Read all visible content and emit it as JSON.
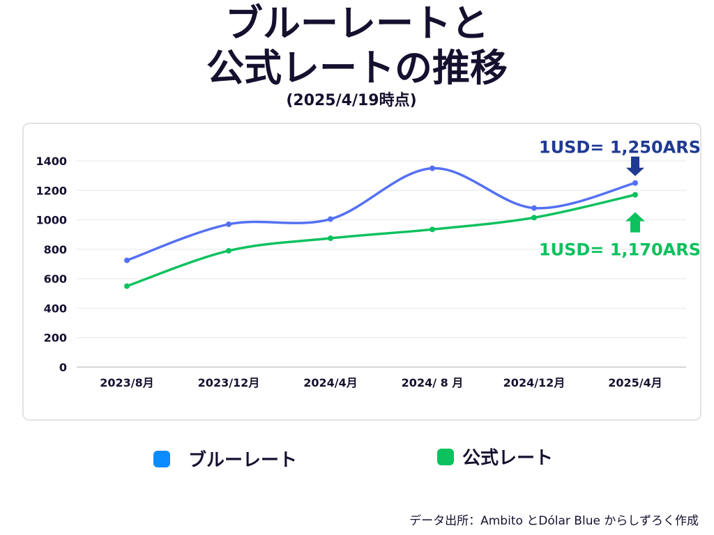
{
  "title": {
    "line1": "ブルーレートと",
    "line2": "公式レートの推移",
    "subtitle": "(2025/4/19時点)"
  },
  "chart_data": {
    "type": "line",
    "categories": [
      "2023/8月",
      "2023/12月",
      "2024/4月",
      "2024/ 8 月",
      "2024/12月",
      "2025/4月"
    ],
    "series": [
      {
        "name": "ブルーレート",
        "values": [
          725,
          970,
          1005,
          1350,
          1080,
          1250
        ],
        "color": "#5470f2"
      },
      {
        "name": "公式レート",
        "values": [
          550,
          790,
          875,
          935,
          1015,
          1170
        ],
        "color": "#0cc15e"
      }
    ],
    "y_ticks": [
      0,
      200,
      400,
      600,
      800,
      1000,
      1200,
      1400
    ],
    "ylim": [
      0,
      1400
    ],
    "grid": true,
    "annotations": [
      {
        "text": "1USD= 1,250ARS",
        "series": 0,
        "arrow": "down",
        "color": "#1f3a93"
      },
      {
        "text": "1USD= 1,170ARS",
        "series": 1,
        "arrow": "up",
        "color": "#0cc15e"
      }
    ]
  },
  "legend": {
    "blue_label": "ブルーレート",
    "green_label": "公式レート"
  },
  "source": "データ出所：Ambito とDólar Blue からしずろく作成"
}
